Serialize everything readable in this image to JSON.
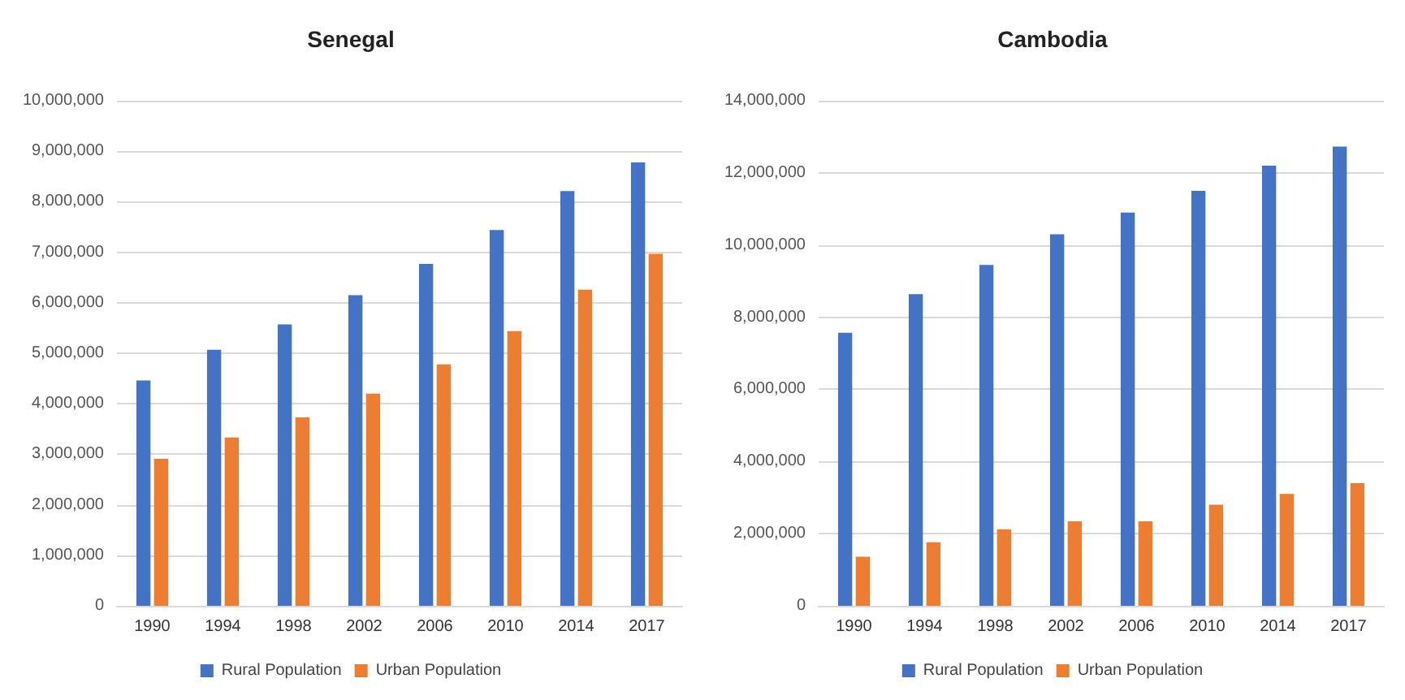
{
  "chart_data": [
    {
      "type": "bar",
      "title": "Senegal",
      "categories": [
        "1990",
        "1994",
        "1998",
        "2002",
        "2006",
        "2010",
        "2014",
        "2017"
      ],
      "series": [
        {
          "name": "Rural Population",
          "color": "#4472c4",
          "values": [
            4460000,
            5070000,
            5570000,
            6150000,
            6770000,
            7440000,
            8210000,
            8780000
          ]
        },
        {
          "name": "Urban Population",
          "color": "#ed7d31",
          "values": [
            2910000,
            3330000,
            3730000,
            4200000,
            4780000,
            5440000,
            6260000,
            6970000
          ]
        }
      ],
      "ylim": [
        0,
        10000000
      ],
      "yticks": [
        {
          "value": 0,
          "label": "0"
        },
        {
          "value": 1000000,
          "label": "1,000,000"
        },
        {
          "value": 2000000,
          "label": "2,000,000"
        },
        {
          "value": 3000000,
          "label": "3,000,000"
        },
        {
          "value": 4000000,
          "label": "4,000,000"
        },
        {
          "value": 5000000,
          "label": "5,000,000"
        },
        {
          "value": 6000000,
          "label": "6,000,000"
        },
        {
          "value": 7000000,
          "label": "7,000,000"
        },
        {
          "value": 8000000,
          "label": "8,000,000"
        },
        {
          "value": 9000000,
          "label": "9,000,000"
        },
        {
          "value": 10000000,
          "label": "10,000,000"
        }
      ],
      "grid": "y",
      "legend": "bottom"
    },
    {
      "type": "bar",
      "title": "Cambodia",
      "categories": [
        "1990",
        "1994",
        "1998",
        "2002",
        "2006",
        "2010",
        "2014",
        "2017"
      ],
      "series": [
        {
          "name": "Rural Population",
          "color": "#4472c4",
          "values": [
            7570000,
            8640000,
            9450000,
            10300000,
            10900000,
            11500000,
            12200000,
            12730000
          ]
        },
        {
          "name": "Urban Population",
          "color": "#ed7d31",
          "values": [
            1360000,
            1760000,
            2120000,
            2340000,
            2340000,
            2800000,
            3100000,
            3400000
          ]
        }
      ],
      "ylim": [
        0,
        14000000
      ],
      "yticks": [
        {
          "value": 0,
          "label": "0"
        },
        {
          "value": 2000000,
          "label": "2,000,000"
        },
        {
          "value": 4000000,
          "label": "4,000,000"
        },
        {
          "value": 6000000,
          "label": "6,000,000"
        },
        {
          "value": 8000000,
          "label": "8,000,000"
        },
        {
          "value": 10000000,
          "label": "10,000,000"
        },
        {
          "value": 12000000,
          "label": "12,000,000"
        },
        {
          "value": 14000000,
          "label": "14,000,000"
        }
      ],
      "grid": "y",
      "legend": "bottom"
    }
  ]
}
